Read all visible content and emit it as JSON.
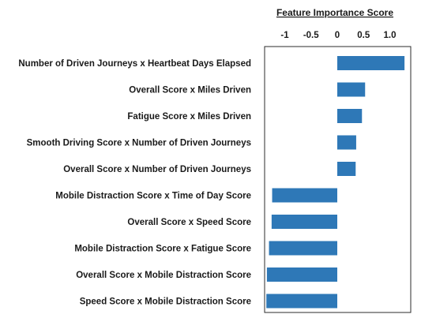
{
  "chart_data": {
    "type": "bar",
    "orientation": "horizontal",
    "title": "",
    "xlabel": "Feature Importance Score",
    "ylabel": "",
    "xlim": [
      -1.25,
      1.3
    ],
    "xticks": [
      -1,
      -0.5,
      0,
      0.5,
      1.0
    ],
    "xtick_labels": [
      "-1",
      "-0.5",
      "0",
      "0.5",
      "1.0"
    ],
    "xaxis_position": "top",
    "grid": false,
    "legend": "none",
    "bar_color": "#2e78b7",
    "categories": [
      "Number of Driven Journeys x Heartbeat Days Elapsed",
      "Overall Score x Miles Driven",
      "Fatigue Score x Miles Driven",
      "Smooth Driving Score x Number of Driven Journeys",
      "Overall Score x Number of Driven Journeys",
      "Mobile Distraction Score x Time of Day Score",
      "Overall Score x Speed Score",
      "Mobile Distraction Score x Fatigue Score",
      "Overall Score x Mobile Distraction Score",
      "Speed Score x Mobile Distraction Score"
    ],
    "values": [
      1.28,
      0.53,
      0.47,
      0.36,
      0.35,
      -1.24,
      -1.25,
      -1.3,
      -1.34,
      -1.35
    ]
  }
}
